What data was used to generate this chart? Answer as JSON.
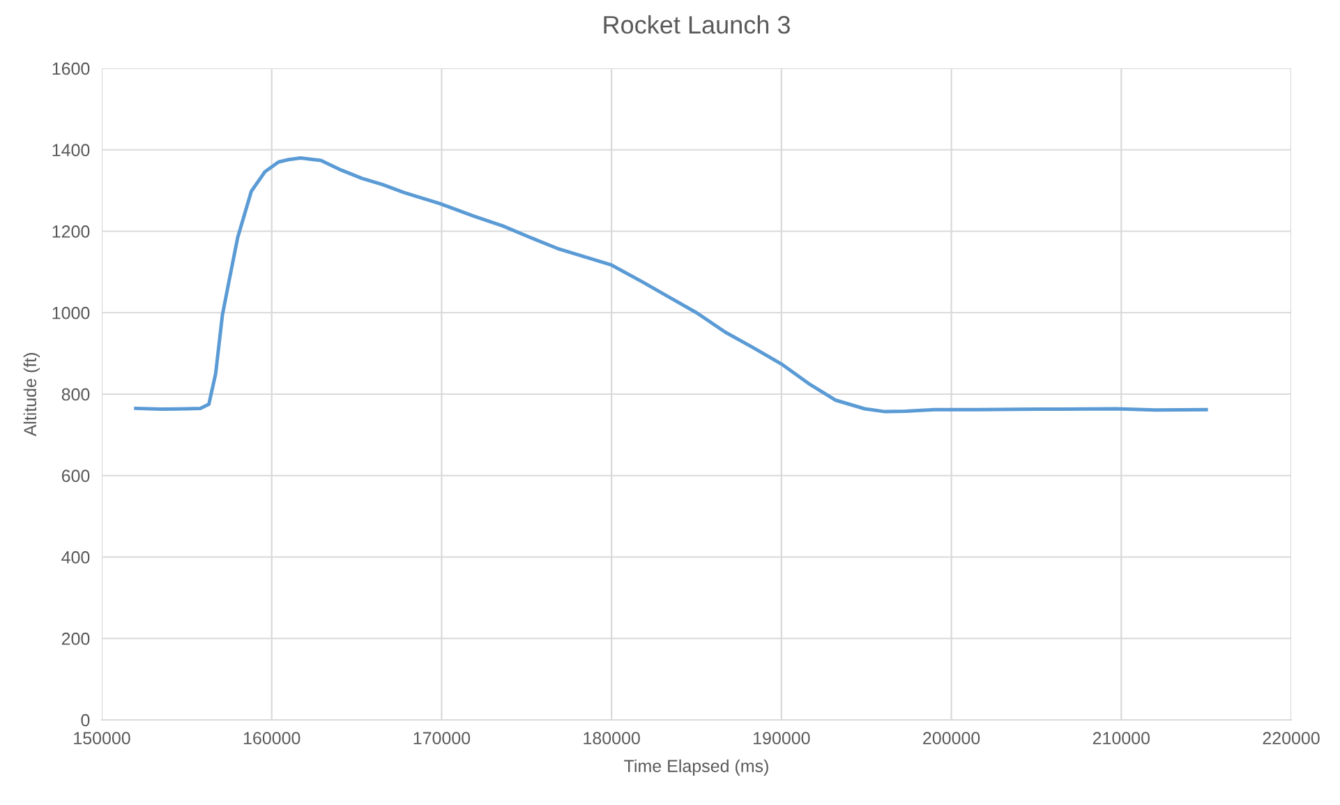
{
  "chart_data": {
    "type": "line",
    "title": "Rocket Launch 3",
    "xlabel": "Time Elapsed (ms)",
    "ylabel": "Altitude (ft)",
    "series": [
      {
        "color": "#5b9bd5",
        "x": [
          152000,
          153500,
          155000,
          155800,
          156300,
          156700,
          157100,
          157500,
          158000,
          158800,
          159600,
          160400,
          161000,
          161700,
          162900,
          164100,
          165300,
          166500,
          167800,
          169900,
          171900,
          173600,
          175200,
          176800,
          180000,
          181800,
          183400,
          185000,
          186700,
          188300,
          190000,
          191600,
          193200,
          194900,
          196100,
          197300,
          199000,
          201500,
          205000,
          209700,
          212000,
          215000
        ],
        "values": [
          765,
          763,
          764,
          765,
          775,
          850,
          995,
          1080,
          1185,
          1298,
          1346,
          1370,
          1376,
          1380,
          1374,
          1350,
          1330,
          1315,
          1295,
          1268,
          1237,
          1213,
          1185,
          1158,
          1117,
          1076,
          1038,
          1000,
          952,
          915,
          874,
          826,
          785,
          764,
          757,
          758,
          762,
          762,
          763,
          764,
          761,
          762
        ]
      }
    ],
    "xlim": [
      150000,
      220000
    ],
    "xticks": [
      150000,
      160000,
      170000,
      180000,
      190000,
      200000,
      210000,
      220000
    ],
    "ylim": [
      0,
      1600
    ],
    "yticks": [
      0,
      200,
      400,
      600,
      800,
      1000,
      1200,
      1400,
      1600
    ],
    "grid": true,
    "marker": "none",
    "line_style": "solid"
  }
}
